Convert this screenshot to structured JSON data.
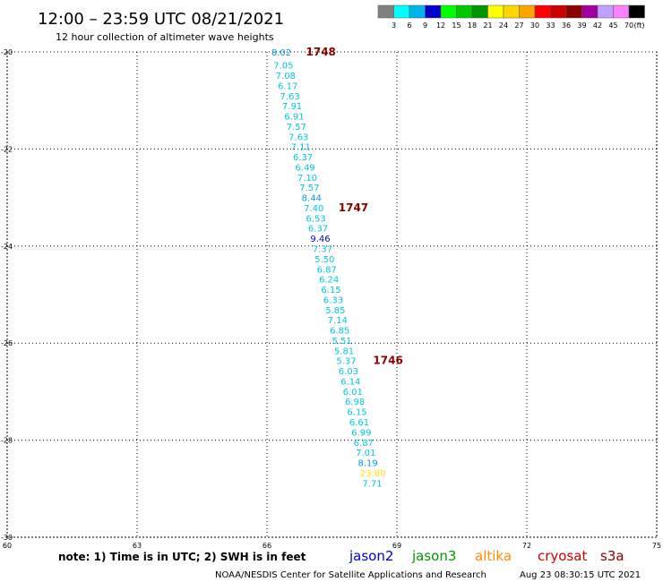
{
  "header": {
    "title": "12:00 – 23:59 UTC 08/21/2021",
    "subtitle": "12 hour collection of altimeter wave heights"
  },
  "color_scale": {
    "unit": "(ft)",
    "bins": [
      {
        "label": "3",
        "color": "#808080"
      },
      {
        "label": "6",
        "color": "#00ffff"
      },
      {
        "label": "9",
        "color": "#00b4e6"
      },
      {
        "label": "12",
        "color": "#0000cd"
      },
      {
        "label": "15",
        "color": "#00ff00"
      },
      {
        "label": "18",
        "color": "#00c800"
      },
      {
        "label": "21",
        "color": "#009600"
      },
      {
        "label": "24",
        "color": "#ffff00"
      },
      {
        "label": "27",
        "color": "#ffd700"
      },
      {
        "label": "30",
        "color": "#ffa500"
      },
      {
        "label": "33",
        "color": "#ff0000"
      },
      {
        "label": "36",
        "color": "#cd0000"
      },
      {
        "label": "39",
        "color": "#8b0000"
      },
      {
        "label": "42",
        "color": "#a000a0"
      },
      {
        "label": "45",
        "color": "#c0a0ff"
      },
      {
        "label": "70",
        "color": "#ff80ff"
      },
      {
        "label": "",
        "color": "#000000"
      }
    ]
  },
  "map": {
    "lon_range": [
      60,
      75
    ],
    "lat_range": [
      -30,
      -20
    ],
    "lon_ticks": [
      "60",
      "63",
      "66",
      "69",
      "72",
      "75"
    ],
    "lat_ticks": [
      "-20",
      "-22",
      "-24",
      "-26",
      "-28",
      "-30"
    ],
    "grid": "dotted",
    "track_colors": {
      "cyan": "#00c8dc",
      "blue": "#00a0e6",
      "dark_blue": "#0000cd",
      "yellow": "#ffe600",
      "time": "#8b0000"
    },
    "observations": [
      {
        "lat": -20.0,
        "lon": 66.1,
        "value": "8.02",
        "color": "#00a0e6"
      },
      {
        "lat": -20.27,
        "lon": 66.15,
        "value": "7.05",
        "color": "#00c8dc"
      },
      {
        "lat": -20.48,
        "lon": 66.2,
        "value": "7.08",
        "color": "#00c8dc"
      },
      {
        "lat": -20.69,
        "lon": 66.25,
        "value": "6.17",
        "color": "#00c8dc"
      },
      {
        "lat": -20.9,
        "lon": 66.3,
        "value": "7.63",
        "color": "#00c8dc"
      },
      {
        "lat": -21.11,
        "lon": 66.35,
        "value": "7.91",
        "color": "#00c8dc"
      },
      {
        "lat": -21.32,
        "lon": 66.4,
        "value": "6.91",
        "color": "#00c8dc"
      },
      {
        "lat": -21.53,
        "lon": 66.45,
        "value": "7.57",
        "color": "#00c8dc"
      },
      {
        "lat": -21.74,
        "lon": 66.5,
        "value": "7.63",
        "color": "#00c8dc"
      },
      {
        "lat": -21.95,
        "lon": 66.55,
        "value": "7.11",
        "color": "#00c8dc"
      },
      {
        "lat": -22.16,
        "lon": 66.6,
        "value": "6.37",
        "color": "#00c8dc"
      },
      {
        "lat": -22.37,
        "lon": 66.65,
        "value": "6.49",
        "color": "#00c8dc"
      },
      {
        "lat": -22.58,
        "lon": 66.7,
        "value": "7.10",
        "color": "#00c8dc"
      },
      {
        "lat": -22.79,
        "lon": 66.75,
        "value": "7.57",
        "color": "#00c8dc"
      },
      {
        "lat": -23.0,
        "lon": 66.8,
        "value": "8.44",
        "color": "#00a0e6"
      },
      {
        "lat": -23.21,
        "lon": 66.85,
        "value": "7.40",
        "color": "#00c8dc"
      },
      {
        "lat": -23.42,
        "lon": 66.9,
        "value": "6.53",
        "color": "#00c8dc"
      },
      {
        "lat": -23.63,
        "lon": 66.95,
        "value": "6.37",
        "color": "#00c8dc"
      },
      {
        "lat": -23.84,
        "lon": 67.0,
        "value": "9.46",
        "color": "#0000cd"
      },
      {
        "lat": -24.05,
        "lon": 67.05,
        "value": "7.37",
        "color": "#00c8dc"
      },
      {
        "lat": -24.26,
        "lon": 67.1,
        "value": "5.50",
        "color": "#00c8dc"
      },
      {
        "lat": -24.47,
        "lon": 67.15,
        "value": "6.87",
        "color": "#00c8dc"
      },
      {
        "lat": -24.68,
        "lon": 67.2,
        "value": "6.24",
        "color": "#00c8dc"
      },
      {
        "lat": -24.89,
        "lon": 67.25,
        "value": "6.15",
        "color": "#00c8dc"
      },
      {
        "lat": -25.1,
        "lon": 67.3,
        "value": "6.33",
        "color": "#00c8dc"
      },
      {
        "lat": -25.31,
        "lon": 67.35,
        "value": "5.85",
        "color": "#00c8dc"
      },
      {
        "lat": -25.52,
        "lon": 67.4,
        "value": "7.14",
        "color": "#00c8dc"
      },
      {
        "lat": -25.73,
        "lon": 67.45,
        "value": "6.85",
        "color": "#00c8dc"
      },
      {
        "lat": -25.94,
        "lon": 67.5,
        "value": "5.51",
        "color": "#00c8dc"
      },
      {
        "lat": -26.15,
        "lon": 67.55,
        "value": "5.81",
        "color": "#00c8dc"
      },
      {
        "lat": -26.36,
        "lon": 67.6,
        "value": "5.37",
        "color": "#00c8dc"
      },
      {
        "lat": -26.57,
        "lon": 67.65,
        "value": "6.03",
        "color": "#00c8dc"
      },
      {
        "lat": -26.78,
        "lon": 67.7,
        "value": "6.14",
        "color": "#00c8dc"
      },
      {
        "lat": -26.99,
        "lon": 67.75,
        "value": "6.01",
        "color": "#00c8dc"
      },
      {
        "lat": -27.2,
        "lon": 67.8,
        "value": "6.98",
        "color": "#00c8dc"
      },
      {
        "lat": -27.41,
        "lon": 67.85,
        "value": "6.15",
        "color": "#00c8dc"
      },
      {
        "lat": -27.62,
        "lon": 67.9,
        "value": "6.61",
        "color": "#00c8dc"
      },
      {
        "lat": -27.83,
        "lon": 67.95,
        "value": "6.99",
        "color": "#00c8dc"
      },
      {
        "lat": -28.04,
        "lon": 68.0,
        "value": "6.87",
        "color": "#00c8dc"
      },
      {
        "lat": -28.25,
        "lon": 68.05,
        "value": "7.01",
        "color": "#00c8dc"
      },
      {
        "lat": -28.46,
        "lon": 68.1,
        "value": "8.19",
        "color": "#00a0e6"
      },
      {
        "lat": -28.67,
        "lon": 68.15,
        "value": "23.80",
        "color": "#ffe600"
      },
      {
        "lat": -28.88,
        "lon": 68.2,
        "value": "7.71",
        "color": "#00c8dc"
      }
    ],
    "times": [
      {
        "lat": -20.0,
        "lon": 66.9,
        "label": "1748"
      },
      {
        "lat": -23.21,
        "lon": 67.65,
        "label": "1747"
      },
      {
        "lat": -26.36,
        "lon": 68.45,
        "label": "1746"
      }
    ]
  },
  "footer": {
    "note": "note: 1) Time is in UTC; 2) SWH is in feet",
    "satellites": [
      {
        "name": "jason2",
        "color": "#0000cd"
      },
      {
        "name": "jason3",
        "color": "#009600"
      },
      {
        "name": "altika",
        "color": "#ff8c00"
      },
      {
        "name": "cryosat",
        "color": "#cd0000"
      },
      {
        "name": "s3a",
        "color": "#8b0000"
      }
    ],
    "credit": "NOAA/NESDIS Center for Satellite Applications and Research",
    "generated": "Aug 23 08:30:15 UTC 2021"
  }
}
